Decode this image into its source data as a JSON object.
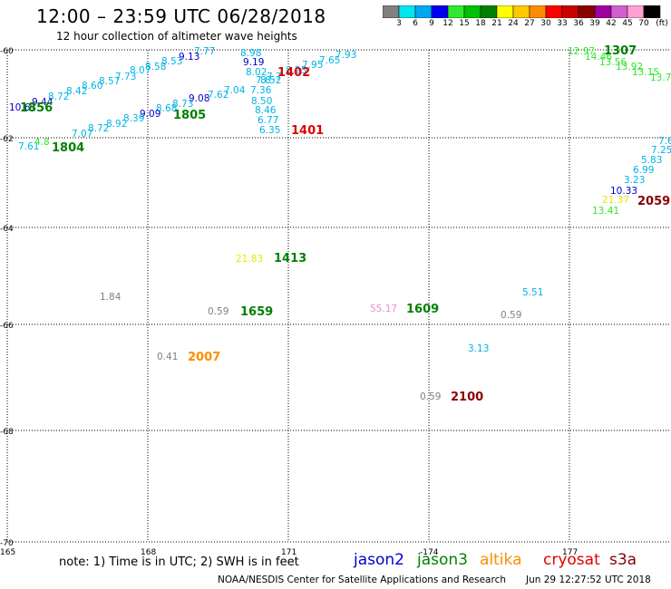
{
  "title": "12:00 – 23:59 UTC 06/28/2018",
  "subtitle": "12 hour collection of altimeter wave heights",
  "colorbar": {
    "unit": "(ft)",
    "labels": [
      "3",
      "6",
      "9",
      "12",
      "15",
      "18",
      "21",
      "24",
      "27",
      "30",
      "33",
      "36",
      "39",
      "42",
      "45",
      "70"
    ],
    "colors": [
      "#808080",
      "#00e5ee",
      "#00a8f0",
      "#0000ee",
      "#30e830",
      "#00c000",
      "#008000",
      "#ffff00",
      "#ffc800",
      "#ff8c00",
      "#ff0000",
      "#c80000",
      "#880000",
      "#a000a0",
      "#d060d0",
      "#ffa0d0",
      "#000000"
    ]
  },
  "map": {
    "lat_labels": [
      "-60",
      "-62",
      "-64",
      "-66",
      "-68",
      "-70"
    ],
    "lon_labels": [
      "165",
      "168",
      "171",
      "-174",
      "177"
    ],
    "swh_readings": [
      {
        "text": "7.77",
        "color": "#00b4e6"
      },
      {
        "text": "9.13",
        "color": "#0000cc"
      },
      {
        "text": "8.53",
        "color": "#00b4e6"
      },
      {
        "text": "8.58",
        "color": "#00b4e6"
      },
      {
        "text": "8.07",
        "color": "#00b4e6"
      },
      {
        "text": "7.73",
        "color": "#00b4e6"
      },
      {
        "text": "8.57",
        "color": "#00b4e6"
      },
      {
        "text": "8.60",
        "color": "#00b4e6"
      },
      {
        "text": "8.42",
        "color": "#00b4e6"
      },
      {
        "text": "8.72",
        "color": "#00b4e6"
      },
      {
        "text": "9.44",
        "color": "#0000cc"
      },
      {
        "text": "10.61",
        "color": "#0000cc"
      },
      {
        "text": "8.98",
        "color": "#00b4e6"
      },
      {
        "text": "9.19",
        "color": "#0000cc"
      },
      {
        "text": "8.02",
        "color": "#00b4e6"
      },
      {
        "text": "7.93",
        "color": "#00b4e6"
      },
      {
        "text": "7.65",
        "color": "#00b4e6"
      },
      {
        "text": "7.95",
        "color": "#00b4e6"
      },
      {
        "text": "8.25",
        "color": "#00b4e6"
      },
      {
        "text": "7.7",
        "color": "#00b4e6"
      },
      {
        "text": "7.6",
        "color": "#00b4e6"
      },
      {
        "text": "8.52",
        "color": "#00b4e6"
      },
      {
        "text": "7.36",
        "color": "#00b4e6"
      },
      {
        "text": "7.04",
        "color": "#00b4e6"
      },
      {
        "text": "7.62",
        "color": "#00b4e6"
      },
      {
        "text": "9.08",
        "color": "#0000cc"
      },
      {
        "text": "8.73",
        "color": "#00b4e6"
      },
      {
        "text": "8.68",
        "color": "#00b4e6"
      },
      {
        "text": "9.09",
        "color": "#0000cc"
      },
      {
        "text": "8.39",
        "color": "#00b4e6"
      },
      {
        "text": "8.92",
        "color": "#00b4e6"
      },
      {
        "text": "8.72",
        "color": "#00b4e6"
      },
      {
        "text": "7.07",
        "color": "#00b4e6"
      },
      {
        "text": "8.50",
        "color": "#00b4e6"
      },
      {
        "text": "8.46",
        "color": "#00b4e6"
      },
      {
        "text": "6.77",
        "color": "#00b4e6"
      },
      {
        "text": "6.35",
        "color": "#00b4e6"
      },
      {
        "text": "7.61",
        "color": "#00b4e6"
      },
      {
        "text": "4.8",
        "color": "#30e830"
      },
      {
        "text": "12.97",
        "color": "#30e830"
      },
      {
        "text": "14.46",
        "color": "#30e830"
      },
      {
        "text": "13.56",
        "color": "#30e830"
      },
      {
        "text": "13.92",
        "color": "#30e830"
      },
      {
        "text": "13.15",
        "color": "#30e830"
      },
      {
        "text": "13.7",
        "color": "#30e830"
      },
      {
        "text": "7.6",
        "color": "#00b4e6"
      },
      {
        "text": "7.25",
        "color": "#00b4e6"
      },
      {
        "text": "5.83",
        "color": "#00b4e6"
      },
      {
        "text": "6.99",
        "color": "#00b4e6"
      },
      {
        "text": "3.23",
        "color": "#00b4e6"
      },
      {
        "text": "10.33",
        "color": "#0000cc"
      },
      {
        "text": "21.37",
        "color": "#e8e800"
      },
      {
        "text": "13.41",
        "color": "#30e830"
      },
      {
        "text": "21.83",
        "color": "#e8e800"
      },
      {
        "text": "1.84",
        "color": "#808080"
      },
      {
        "text": "0.59",
        "color": "#808080"
      },
      {
        "text": "0.41",
        "color": "#808080"
      },
      {
        "text": "55.17",
        "color": "#e890d0"
      },
      {
        "text": "5.51",
        "color": "#00b4e6"
      },
      {
        "text": "0.59",
        "color": "#808080"
      },
      {
        "text": "3.13",
        "color": "#00b4e6"
      },
      {
        "text": "0.59",
        "color": "#808080"
      }
    ],
    "pass_times": [
      {
        "text": "1856",
        "color": "#008000"
      },
      {
        "text": "1805",
        "color": "#008000"
      },
      {
        "text": "1804",
        "color": "#008000"
      },
      {
        "text": "1402",
        "color": "#dd0000"
      },
      {
        "text": "1401",
        "color": "#dd0000"
      },
      {
        "text": "1307",
        "color": "#008000"
      },
      {
        "text": "2059",
        "color": "#880000"
      },
      {
        "text": "1413",
        "color": "#008000"
      },
      {
        "text": "1659",
        "color": "#008000"
      },
      {
        "text": "2007",
        "color": "#ff8c00"
      },
      {
        "text": "1609",
        "color": "#008000"
      },
      {
        "text": "2100",
        "color": "#880000"
      }
    ]
  },
  "note": "note: 1) Time is in UTC; 2) SWH is in feet",
  "legend": [
    {
      "name": "jason2",
      "color": "#0000cc"
    },
    {
      "name": "jason3",
      "color": "#008000"
    },
    {
      "name": "altika",
      "color": "#ff8c00"
    },
    {
      "name": "cryosat",
      "color": "#dd0000"
    },
    {
      "name": "s3a",
      "color": "#880000"
    }
  ],
  "credit": "NOAA/NESDIS Center for Satellite Applications and Research",
  "timestamp": "Jun 29 12:27:52 UTC 2018"
}
